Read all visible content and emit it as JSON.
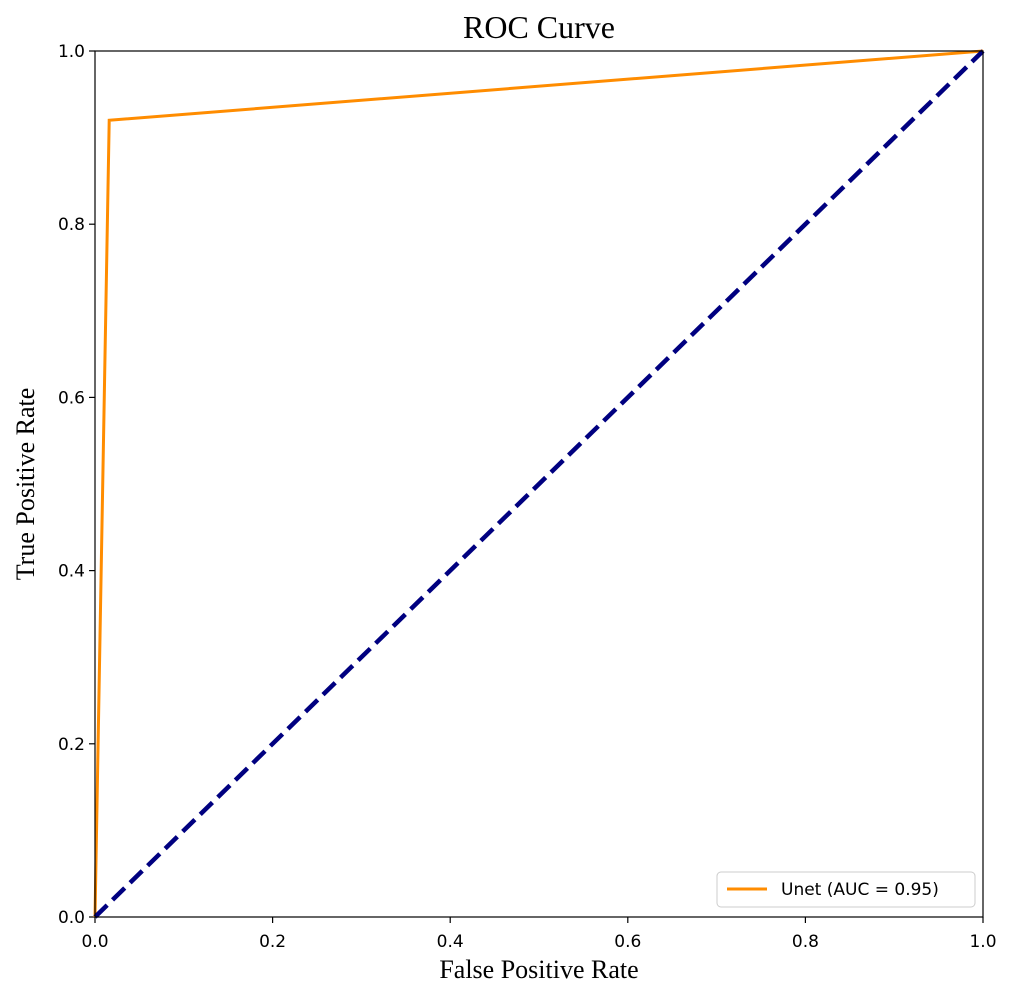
{
  "chart_data": {
    "type": "line",
    "title": "ROC Curve",
    "x_label": "False Positive Rate",
    "y_label": "True Positive Rate",
    "series": [
      {
        "name": "Unet (AUC = 0.95)",
        "color": "#ff8c00",
        "linestyle": "solid",
        "x": [
          0,
          0.016,
          1
        ],
        "values": [
          0,
          0.92,
          1
        ]
      },
      {
        "color": "#000080",
        "linestyle": "dashed",
        "x": [
          0,
          1
        ],
        "values": [
          0,
          1
        ]
      }
    ],
    "xlim": [
      0,
      1
    ],
    "ylim": [
      0,
      1
    ],
    "xticks": [
      {
        "value": 0,
        "label": "0.0"
      },
      0.2,
      0.4,
      0.6,
      0.8,
      {
        "value": 1,
        "label": "1.0"
      }
    ],
    "yticks": [
      {
        "value": 0,
        "label": "0.0"
      },
      0.2,
      0.4,
      0.6,
      0.8,
      {
        "value": 1,
        "label": "1.0"
      }
    ],
    "grid": false,
    "legend": "lower right"
  }
}
